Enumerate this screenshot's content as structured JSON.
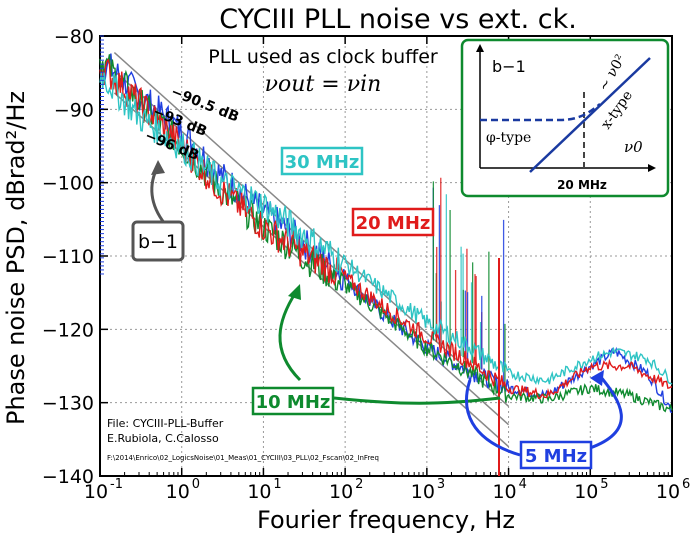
{
  "chart_data": {
    "type": "line",
    "title": "CYCIII PLL noise vs ext. ck.",
    "xlabel": "Fourier frequency, Hz",
    "ylabel": "Phase noise PSD, dBrad²/Hz",
    "xscale": "log",
    "xlim": [
      0.1,
      1000000
    ],
    "ylim": [
      -140,
      -80
    ],
    "grid": true,
    "x_tick_labels": [
      "10",
      "10",
      "10",
      "10",
      "10",
      "10",
      "10",
      "10"
    ],
    "x_tick_exponents": [
      "-1",
      "0",
      "1",
      "2",
      "3",
      "4",
      "5",
      "6"
    ],
    "y_ticks": [
      -140,
      -130,
      -120,
      -110,
      -100,
      -90,
      -80
    ],
    "y_tick_labels": [
      "−140",
      "−130",
      "−120",
      "−110",
      "−100",
      "−90",
      "−80"
    ],
    "annotation_top": "PLL used as clock buffer",
    "annotation_formula": "νout = νin",
    "series": [
      {
        "name": "30 MHz",
        "color": "#2ec4c4",
        "points": [
          [
            0.1,
            -85
          ],
          [
            0.3,
            -91
          ],
          [
            1,
            -95
          ],
          [
            3,
            -100
          ],
          [
            10,
            -103
          ],
          [
            30,
            -107
          ],
          [
            100,
            -111
          ],
          [
            300,
            -115
          ],
          [
            1000,
            -119
          ],
          [
            3000,
            -122
          ],
          [
            10000,
            -126
          ],
          [
            30000,
            -127
          ],
          [
            100000,
            -124
          ],
          [
            200000,
            -123
          ],
          [
            500000,
            -124
          ],
          [
            1000000,
            -127
          ]
        ]
      },
      {
        "name": "20 MHz",
        "color": "#e01b1b",
        "points": [
          [
            0.1,
            -84
          ],
          [
            0.3,
            -89
          ],
          [
            1,
            -95
          ],
          [
            3,
            -101
          ],
          [
            10,
            -106
          ],
          [
            30,
            -109.5
          ],
          [
            100,
            -113
          ],
          [
            300,
            -117
          ],
          [
            1000,
            -121
          ],
          [
            3000,
            -124
          ],
          [
            10000,
            -128
          ],
          [
            30000,
            -129
          ],
          [
            100000,
            -125
          ],
          [
            300000,
            -125
          ],
          [
            1000000,
            -128
          ]
        ]
      },
      {
        "name": "10 MHz",
        "color": "#0e8a2e",
        "points": [
          [
            0.1,
            -83
          ],
          [
            0.3,
            -89
          ],
          [
            1,
            -95
          ],
          [
            3,
            -101
          ],
          [
            10,
            -106
          ],
          [
            30,
            -110
          ],
          [
            100,
            -114
          ],
          [
            300,
            -118
          ],
          [
            1000,
            -122.5
          ],
          [
            3000,
            -125.5
          ],
          [
            10000,
            -129
          ],
          [
            30000,
            -129.5
          ],
          [
            100000,
            -128
          ],
          [
            300000,
            -129
          ],
          [
            1000000,
            -131
          ]
        ]
      },
      {
        "name": "5 MHz",
        "color": "#1f3fe0",
        "points": [
          [
            0.1,
            -83
          ],
          [
            0.3,
            -88
          ],
          [
            1,
            -93
          ],
          [
            3,
            -99
          ],
          [
            10,
            -104
          ],
          [
            30,
            -108
          ],
          [
            100,
            -113
          ],
          [
            300,
            -118
          ],
          [
            1000,
            -122.5
          ],
          [
            3000,
            -125.5
          ],
          [
            10000,
            -128
          ],
          [
            30000,
            -129
          ],
          [
            100000,
            -125
          ],
          [
            200000,
            -123
          ],
          [
            500000,
            -126
          ],
          [
            1000000,
            -131
          ]
        ]
      }
    ],
    "flicker_lines": [
      {
        "label": "−90.5 dB",
        "level_at_1hz": -90.5
      },
      {
        "label": "−93 dB",
        "level_at_1hz": -93
      },
      {
        "label": "−96 dB",
        "level_at_1hz": -96
      }
    ],
    "labels": {
      "series_30": "30 MHz",
      "series_20": "20 MHz",
      "series_10": "10 MHz",
      "series_5": "5 MHz",
      "b_minus_1": "b−1"
    },
    "inset": {
      "ylabel": "b−1",
      "xlabel": "ν0",
      "left_label": "φ-type",
      "right_label": "x-type",
      "slope_label": "~ ν0²",
      "marker": "20 MHz"
    },
    "file_info": [
      "File: CYCIII-PLL-Buffer",
      "E.Rubiola, C.Calosso",
      "F:\\2014\\Enrico\\02_LogicsNoise\\01_Meas\\01_CYCIII\\03_PLL\\02_Fscan\\02_InFreq"
    ],
    "spur_region": [
      1000,
      10000
    ]
  }
}
